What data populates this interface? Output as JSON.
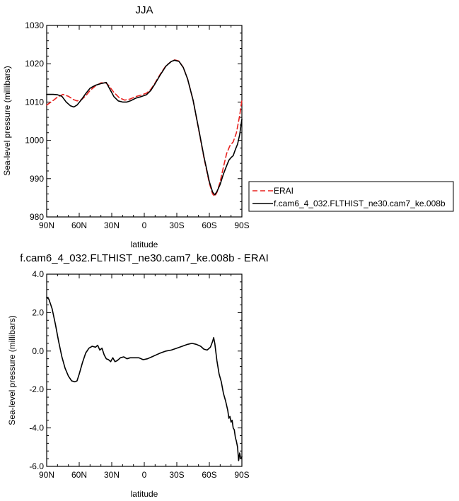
{
  "chart_data": [
    {
      "type": "line",
      "title": "JJA",
      "xlabel": "latitude",
      "ylabel": "Sea-level pressure (millibars)",
      "xlim": [
        90,
        -90
      ],
      "ylim": [
        980,
        1030
      ],
      "x_ticks": [
        90,
        60,
        30,
        0,
        -30,
        -60,
        -90
      ],
      "x_tick_labels": [
        "90N",
        "60N",
        "30N",
        "0",
        "30S",
        "60S",
        "90S"
      ],
      "y_ticks": [
        980,
        990,
        1000,
        1010,
        1020,
        1030
      ],
      "y_tick_labels": [
        "980",
        "990",
        "1000",
        "1010",
        "1020",
        "1030"
      ],
      "grid": false,
      "legend_position": "right, outside plot",
      "series": [
        {
          "name": "ERAI",
          "color": "#e8221f",
          "dash": "dashed",
          "points": [
            [
              90,
              1009.2
            ],
            [
              85,
              1010.2
            ],
            [
              80,
              1011.3
            ],
            [
              75,
              1012.0
            ],
            [
              70,
              1011.5
            ],
            [
              65,
              1010.6
            ],
            [
              62,
              1010.3
            ],
            [
              58,
              1010.6
            ],
            [
              54,
              1011.6
            ],
            [
              50,
              1013.0
            ],
            [
              45,
              1014.2
            ],
            [
              40,
              1015.0
            ],
            [
              36,
              1015.1
            ],
            [
              33,
              1014.4
            ],
            [
              28,
              1012.5
            ],
            [
              23,
              1011.1
            ],
            [
              18,
              1010.5
            ],
            [
              13,
              1010.8
            ],
            [
              8,
              1011.4
            ],
            [
              3,
              1011.8
            ],
            [
              -2,
              1012.3
            ],
            [
              -6,
              1013.3
            ],
            [
              -10,
              1015.0
            ],
            [
              -15,
              1017.4
            ],
            [
              -20,
              1019.5
            ],
            [
              -25,
              1020.6
            ],
            [
              -28,
              1021.0
            ],
            [
              -32,
              1020.7
            ],
            [
              -36,
              1019.0
            ],
            [
              -40,
              1016.0
            ],
            [
              -45,
              1010.5
            ],
            [
              -50,
              1003.0
            ],
            [
              -55,
              995.5
            ],
            [
              -60,
              988.8
            ],
            [
              -63,
              986.0
            ],
            [
              -65,
              985.4
            ],
            [
              -67,
              986.4
            ],
            [
              -70,
              989.2
            ],
            [
              -73,
              993.0
            ],
            [
              -76,
              996.6
            ],
            [
              -79,
              998.6
            ],
            [
              -82,
              999.6
            ],
            [
              -85,
              1002.0
            ],
            [
              -88,
              1006.5
            ],
            [
              -90,
              1010.5
            ]
          ]
        },
        {
          "name": "f.cam6_4_032.FLTHIST_ne30.cam7_ke.008b",
          "color": "#000000",
          "dash": "solid",
          "points": [
            [
              90,
              1012.0
            ],
            [
              84,
              1012.0
            ],
            [
              80,
              1011.9
            ],
            [
              76,
              1011.5
            ],
            [
              72,
              1010.0
            ],
            [
              68,
              1009.0
            ],
            [
              65,
              1008.7
            ],
            [
              62,
              1009.2
            ],
            [
              58,
              1010.6
            ],
            [
              54,
              1012.2
            ],
            [
              50,
              1013.6
            ],
            [
              45,
              1014.4
            ],
            [
              40,
              1014.8
            ],
            [
              37,
              1015.0
            ],
            [
              35,
              1015.1
            ],
            [
              32,
              1013.5
            ],
            [
              28,
              1011.4
            ],
            [
              24,
              1010.3
            ],
            [
              20,
              1010.0
            ],
            [
              16,
              1010.0
            ],
            [
              12,
              1010.4
            ],
            [
              8,
              1011.0
            ],
            [
              3,
              1011.4
            ],
            [
              -2,
              1011.9
            ],
            [
              -6,
              1013.0
            ],
            [
              -10,
              1014.8
            ],
            [
              -15,
              1017.2
            ],
            [
              -20,
              1019.4
            ],
            [
              -25,
              1020.6
            ],
            [
              -28,
              1020.9
            ],
            [
              -32,
              1020.6
            ],
            [
              -36,
              1019.0
            ],
            [
              -40,
              1016.0
            ],
            [
              -45,
              1010.5
            ],
            [
              -50,
              1003.2
            ],
            [
              -55,
              995.8
            ],
            [
              -60,
              989.2
            ],
            [
              -63,
              986.5
            ],
            [
              -65,
              985.8
            ],
            [
              -67,
              986.6
            ],
            [
              -70,
              988.5
            ],
            [
              -73,
              991.2
            ],
            [
              -76,
              993.4
            ],
            [
              -78,
              994.8
            ],
            [
              -80,
              995.5
            ],
            [
              -82,
              996.0
            ],
            [
              -84,
              997.6
            ],
            [
              -86,
              999.0
            ],
            [
              -88,
              1001.5
            ],
            [
              -90,
              1005.5
            ]
          ]
        }
      ]
    },
    {
      "type": "line",
      "title": "f.cam6_4_032.FLTHIST_ne30.cam7_ke.008b - ERAI",
      "xlabel": "latitude",
      "ylabel": "Sea-level pressure (millibars)",
      "xlim": [
        90,
        -90
      ],
      "ylim": [
        -6.0,
        4.0
      ],
      "x_ticks": [
        90,
        60,
        30,
        0,
        -30,
        -60,
        -90
      ],
      "x_tick_labels": [
        "90N",
        "60N",
        "30N",
        "0",
        "30S",
        "60S",
        "90S"
      ],
      "y_ticks": [
        -6.0,
        -4.0,
        -2.0,
        0.0,
        2.0,
        4.0
      ],
      "y_tick_labels": [
        "-6.0",
        "-4.0",
        "-2.0",
        "0.0",
        "2.0",
        "4.0"
      ],
      "grid": false,
      "series": [
        {
          "color": "#000000",
          "dash": "solid",
          "points": [
            [
              90,
              2.8
            ],
            [
              88,
              2.7
            ],
            [
              85,
              2.2
            ],
            [
              82,
              1.4
            ],
            [
              79,
              0.5
            ],
            [
              76,
              -0.3
            ],
            [
              73,
              -0.9
            ],
            [
              70,
              -1.3
            ],
            [
              67,
              -1.55
            ],
            [
              64,
              -1.6
            ],
            [
              62,
              -1.55
            ],
            [
              60,
              -1.2
            ],
            [
              57,
              -0.6
            ],
            [
              54,
              -0.1
            ],
            [
              51,
              0.15
            ],
            [
              48,
              0.25
            ],
            [
              45,
              0.2
            ],
            [
              43,
              0.3
            ],
            [
              41,
              0.05
            ],
            [
              39,
              0.15
            ],
            [
              37,
              -0.2
            ],
            [
              35,
              -0.4
            ],
            [
              33,
              -0.45
            ],
            [
              31,
              -0.55
            ],
            [
              29,
              -0.35
            ],
            [
              27,
              -0.55
            ],
            [
              25,
              -0.5
            ],
            [
              22,
              -0.35
            ],
            [
              19,
              -0.3
            ],
            [
              16,
              -0.4
            ],
            [
              13,
              -0.35
            ],
            [
              9,
              -0.35
            ],
            [
              5,
              -0.35
            ],
            [
              1,
              -0.45
            ],
            [
              -3,
              -0.4
            ],
            [
              -7,
              -0.3
            ],
            [
              -11,
              -0.2
            ],
            [
              -15,
              -0.1
            ],
            [
              -20,
              0.0
            ],
            [
              -25,
              0.05
            ],
            [
              -30,
              0.15
            ],
            [
              -35,
              0.25
            ],
            [
              -40,
              0.35
            ],
            [
              -44,
              0.4
            ],
            [
              -48,
              0.35
            ],
            [
              -52,
              0.25
            ],
            [
              -55,
              0.1
            ],
            [
              -58,
              0.05
            ],
            [
              -61,
              0.2
            ],
            [
              -63,
              0.5
            ],
            [
              -64,
              0.7
            ],
            [
              -65,
              0.4
            ],
            [
              -67,
              -0.5
            ],
            [
              -69,
              -1.2
            ],
            [
              -71,
              -1.6
            ],
            [
              -73,
              -2.2
            ],
            [
              -75,
              -2.6
            ],
            [
              -77,
              -3.1
            ],
            [
              -78,
              -3.5
            ],
            [
              -79,
              -3.4
            ],
            [
              -80,
              -3.7
            ],
            [
              -81,
              -3.6
            ],
            [
              -82,
              -4.0
            ],
            [
              -83,
              -4.1
            ],
            [
              -84,
              -4.5
            ],
            [
              -85,
              -4.7
            ],
            [
              -86,
              -5.0
            ],
            [
              -87,
              -5.7
            ],
            [
              -88,
              -5.3
            ],
            [
              -89,
              -5.6
            ],
            [
              -90,
              -5.5
            ]
          ]
        }
      ]
    }
  ]
}
